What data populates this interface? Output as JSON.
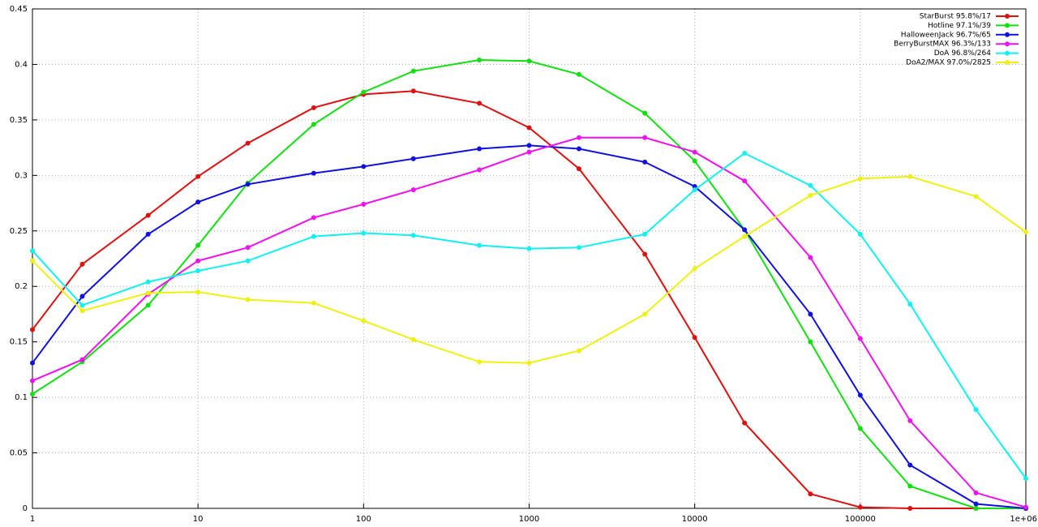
{
  "chart_data": {
    "type": "line",
    "xscale": "log",
    "grid": true,
    "legend": "upper right",
    "x": [
      1,
      2,
      5,
      10,
      20,
      50,
      100,
      200,
      500,
      1000,
      2000,
      5000,
      10000,
      20000,
      50000,
      100000,
      200000,
      500000,
      1000000
    ],
    "xlim": [
      1,
      1000000
    ],
    "xticks": [
      1,
      10,
      100,
      1000,
      10000,
      100000,
      {
        "value": 1000000,
        "label": "1e+06"
      }
    ],
    "ylim": [
      0,
      0.45
    ],
    "yticks": [
      0,
      0.05,
      0.1,
      0.15,
      0.2,
      0.25,
      0.3,
      0.35,
      0.4,
      0.45
    ],
    "series": [
      {
        "name": "StarBurst  95.8%/17",
        "color": "#e01010",
        "values": [
          0.161,
          0.22,
          0.264,
          0.299,
          0.329,
          0.361,
          0.373,
          0.376,
          0.365,
          0.343,
          0.306,
          0.229,
          0.154,
          0.077,
          0.013,
          0.001,
          0,
          0,
          0
        ]
      },
      {
        "name": "Hotline  97.1%/39",
        "color": "#10e010",
        "values": [
          0.103,
          0.132,
          0.183,
          0.237,
          0.293,
          0.346,
          0.375,
          0.394,
          0.404,
          0.403,
          0.391,
          0.356,
          0.313,
          0.251,
          0.15,
          0.072,
          0.02,
          0,
          0
        ]
      },
      {
        "name": "HalloweenJack  96.7%/65",
        "color": "#1010e0",
        "values": [
          0.131,
          0.191,
          0.247,
          0.276,
          0.292,
          0.302,
          0.308,
          0.315,
          0.324,
          0.327,
          0.324,
          0.312,
          0.29,
          0.251,
          0.175,
          0.102,
          0.039,
          0.004,
          0
        ]
      },
      {
        "name": "BerryBurstMAX  96.3%/133",
        "color": "#f010f0",
        "values": [
          0.115,
          0.134,
          0.193,
          0.223,
          0.235,
          0.262,
          0.274,
          0.287,
          0.305,
          0.321,
          0.334,
          0.334,
          0.321,
          0.295,
          0.226,
          0.153,
          0.079,
          0.014,
          0.001
        ]
      },
      {
        "name": "DoA  96.8%/264",
        "color": "#10f0f0",
        "values": [
          0.232,
          0.183,
          0.204,
          0.214,
          0.223,
          0.245,
          0.248,
          0.246,
          0.237,
          0.234,
          0.235,
          0.247,
          0.287,
          0.32,
          0.291,
          0.247,
          0.184,
          0.089,
          0.027
        ]
      },
      {
        "name": "DoA2/MAX  97.0%/2825",
        "color": "#f0f010",
        "values": [
          0.223,
          0.178,
          0.194,
          0.195,
          0.188,
          0.185,
          0.169,
          0.152,
          0.132,
          0.131,
          0.142,
          0.175,
          0.216,
          0.245,
          0.282,
          0.297,
          0.299,
          0.281,
          0.249
        ]
      }
    ]
  }
}
